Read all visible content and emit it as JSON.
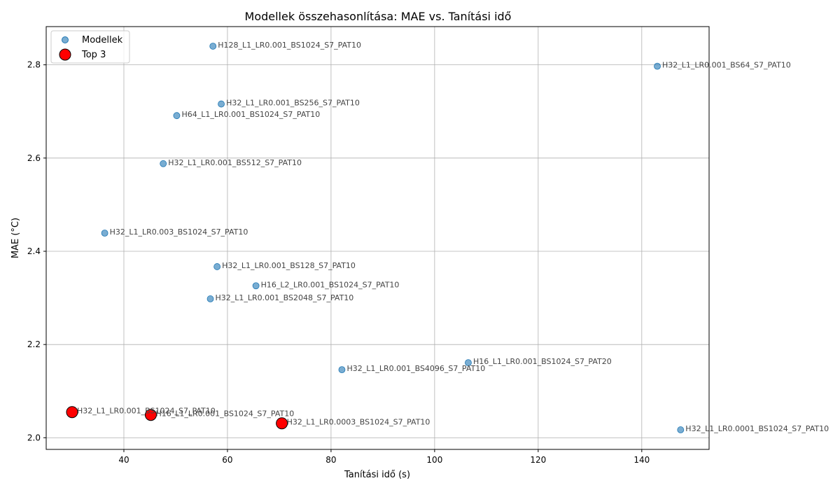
{
  "chart_data": {
    "type": "scatter",
    "title": "Modellek összehasonlítása: MAE vs. Tanítási idő",
    "xlabel": "Tanítási idő (s)",
    "ylabel": "MAE (°C)",
    "xlim": [
      25,
      153
    ],
    "ylim": [
      1.975,
      2.882
    ],
    "xticks": [
      40,
      60,
      80,
      100,
      120,
      140
    ],
    "yticks": [
      2.0,
      2.2,
      2.4,
      2.6,
      2.8
    ],
    "xtick_labels": [
      "40",
      "60",
      "80",
      "100",
      "120",
      "140"
    ],
    "ytick_labels": [
      "2.0",
      "2.2",
      "2.4",
      "2.6",
      "2.8"
    ],
    "grid": true,
    "legend_position": "top-left",
    "series": [
      {
        "name": "Modellek",
        "color": "#1f77b4",
        "points": [
          {
            "label": "H128_L1_LR0.001_BS1024_S7_PAT10",
            "x": 57.2,
            "y": 2.84
          },
          {
            "label": "H32_L1_LR0.001_BS64_S7_PAT10",
            "x": 143.0,
            "y": 2.797
          },
          {
            "label": "H32_L1_LR0.001_BS256_S7_PAT10",
            "x": 58.8,
            "y": 2.716
          },
          {
            "label": "H64_L1_LR0.001_BS1024_S7_PAT10",
            "x": 50.2,
            "y": 2.691
          },
          {
            "label": "H32_L1_LR0.001_BS512_S7_PAT10",
            "x": 47.6,
            "y": 2.588
          },
          {
            "label": "H32_L1_LR0.003_BS1024_S7_PAT10",
            "x": 36.3,
            "y": 2.439
          },
          {
            "label": "H32_L1_LR0.001_BS128_S7_PAT10",
            "x": 58.0,
            "y": 2.367
          },
          {
            "label": "H16_L2_LR0.001_BS1024_S7_PAT10",
            "x": 65.5,
            "y": 2.326
          },
          {
            "label": "H32_L1_LR0.001_BS2048_S7_PAT10",
            "x": 56.7,
            "y": 2.298
          },
          {
            "label": "H16_L1_LR0.001_BS1024_S7_PAT20",
            "x": 106.5,
            "y": 2.161
          },
          {
            "label": "H32_L1_LR0.001_BS4096_S7_PAT10",
            "x": 82.1,
            "y": 2.146
          },
          {
            "label": "H32_L1_LR0.001_BS1024_S7_PAT10",
            "x": 30.0,
            "y": 2.055
          },
          {
            "label": "H16_L1_LR0.001_BS1024_S7_PAT10",
            "x": 45.2,
            "y": 2.049
          },
          {
            "label": "H32_L1_LR0.0003_BS1024_S7_PAT10",
            "x": 70.5,
            "y": 2.031
          },
          {
            "label": "H32_L1_LR0.0001_BS1024_S7_PAT10",
            "x": 147.5,
            "y": 2.017
          }
        ]
      },
      {
        "name": "Top 3",
        "color": "#ff0000",
        "points": [
          {
            "x": 30.0,
            "y": 2.055
          },
          {
            "x": 45.2,
            "y": 2.049
          },
          {
            "x": 70.5,
            "y": 2.031
          }
        ]
      }
    ]
  }
}
